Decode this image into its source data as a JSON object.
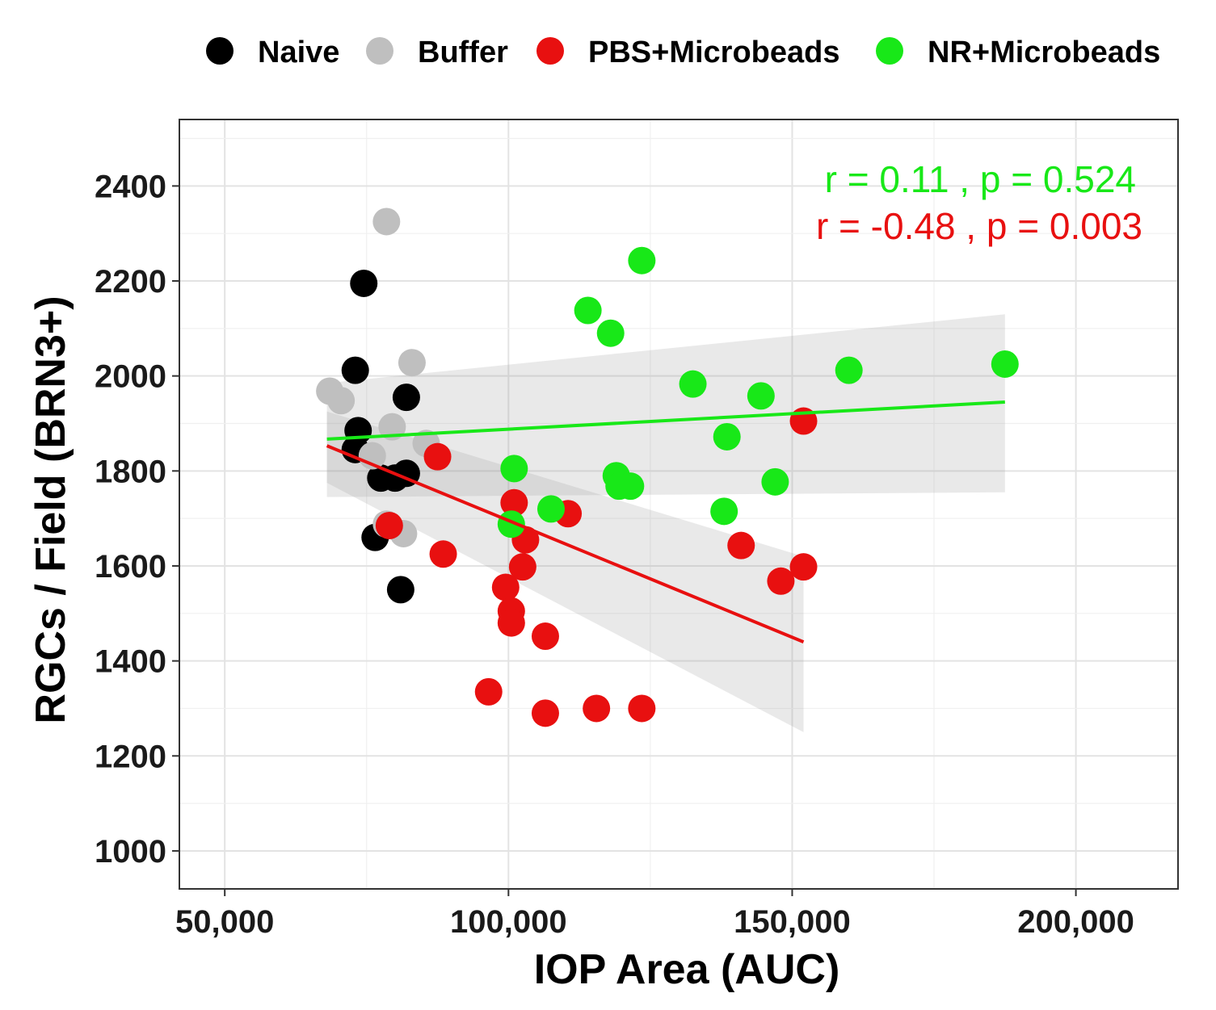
{
  "chart_data": {
    "type": "scatter",
    "title": "",
    "xlabel": "IOP Area (AUC)",
    "ylabel": "RGCs / Field (BRN3+)",
    "xlim": [
      42000,
      218000
    ],
    "ylim": [
      920,
      2540
    ],
    "xticks": [
      50000,
      100000,
      150000,
      200000
    ],
    "xtick_labels": [
      "50,000",
      "100,000",
      "150,000",
      "200,000"
    ],
    "yticks": [
      1000,
      1200,
      1400,
      1600,
      1800,
      2000,
      2200,
      2400
    ],
    "ytick_labels": [
      "1000",
      "1200",
      "1400",
      "1600",
      "1800",
      "2000",
      "2200",
      "2400"
    ],
    "grid": true,
    "legend_position": "top",
    "series": [
      {
        "name": "Naive",
        "color": "#000000",
        "points": [
          [
            74500,
            2195
          ],
          [
            73000,
            2012
          ],
          [
            82000,
            1955
          ],
          [
            73500,
            1885
          ],
          [
            73000,
            1845
          ],
          [
            82000,
            1795
          ],
          [
            77500,
            1785
          ],
          [
            80000,
            1785
          ],
          [
            76500,
            1660
          ],
          [
            81000,
            1550
          ]
        ]
      },
      {
        "name": "Buffer",
        "color": "#bfbfbf",
        "points": [
          [
            78500,
            2325
          ],
          [
            68500,
            1968
          ],
          [
            70500,
            1948
          ],
          [
            83000,
            2028
          ],
          [
            79500,
            1893
          ],
          [
            76000,
            1832
          ],
          [
            85500,
            1858
          ],
          [
            78500,
            1688
          ],
          [
            81500,
            1668
          ]
        ]
      },
      {
        "name": "PBS+Microbeads",
        "color": "#e81010",
        "points": [
          [
            87500,
            1830
          ],
          [
            101000,
            1733
          ],
          [
            110500,
            1710
          ],
          [
            103000,
            1655
          ],
          [
            79000,
            1685
          ],
          [
            88500,
            1625
          ],
          [
            102500,
            1598
          ],
          [
            99500,
            1555
          ],
          [
            100500,
            1505
          ],
          [
            100500,
            1480
          ],
          [
            106500,
            1452
          ],
          [
            96500,
            1335
          ],
          [
            106500,
            1290
          ],
          [
            115500,
            1300
          ],
          [
            123500,
            1300
          ],
          [
            141000,
            1643
          ],
          [
            148000,
            1568
          ],
          [
            152000,
            1598
          ],
          [
            152000,
            1905
          ]
        ]
      },
      {
        "name": "NR+Microbeads",
        "color": "#18e818",
        "points": [
          [
            123500,
            2243
          ],
          [
            114000,
            2138
          ],
          [
            118000,
            2090
          ],
          [
            132500,
            1983
          ],
          [
            144500,
            1958
          ],
          [
            160000,
            2012
          ],
          [
            187500,
            2025
          ],
          [
            138500,
            1872
          ],
          [
            101000,
            1805
          ],
          [
            119000,
            1790
          ],
          [
            119500,
            1768
          ],
          [
            121500,
            1768
          ],
          [
            147000,
            1777
          ],
          [
            107500,
            1720
          ],
          [
            138000,
            1715
          ],
          [
            100500,
            1688
          ]
        ]
      }
    ],
    "fits": [
      {
        "name": "NR+Microbeads fit",
        "color": "#18e818",
        "x_start": 68000,
        "x_end": 187500,
        "y_start": 1867,
        "y_end": 1945,
        "ci_lower_start": 1745,
        "ci_lower_end": 1755,
        "ci_upper_start": 1985,
        "ci_upper_end": 2130
      },
      {
        "name": "PBS+Microbeads fit",
        "color": "#e81010",
        "x_start": 68000,
        "x_end": 152000,
        "y_start": 1853,
        "y_end": 1440,
        "ci_lower_start": 1775,
        "ci_lower_end": 1250,
        "ci_upper_start": 1925,
        "ci_upper_end": 1620
      }
    ],
    "annotations": [
      {
        "text": "r = 0.11 , p =  0.524",
        "color": "#18e818"
      },
      {
        "text": "r = -0.48 , p =  0.003",
        "color": "#e81010"
      }
    ]
  }
}
